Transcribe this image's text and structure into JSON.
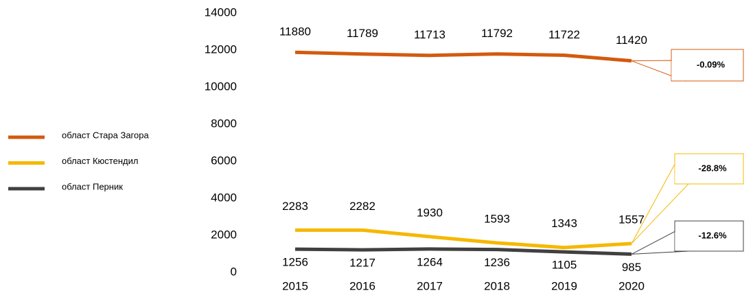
{
  "chart_data": {
    "type": "line",
    "categories": [
      "2015",
      "2016",
      "2017",
      "2018",
      "2019",
      "2020"
    ],
    "series": [
      {
        "name": "област Стара Загора",
        "color": "#d35a0f",
        "values": [
          11880,
          11789,
          11713,
          11792,
          11722,
          11420
        ]
      },
      {
        "name": "област Кюстендил",
        "color": "#f5b800",
        "values": [
          2283,
          2282,
          1930,
          1593,
          1343,
          1557
        ]
      },
      {
        "name": "област Перник",
        "color": "#404040",
        "values": [
          1256,
          1217,
          1264,
          1236,
          1105,
          985
        ]
      }
    ],
    "ylim": [
      0,
      14000
    ],
    "yticks": [
      0,
      2000,
      4000,
      6000,
      8000,
      10000,
      12000,
      14000
    ],
    "grid": false,
    "legend": "left",
    "annotations": [
      {
        "text": "-0.09%",
        "series": 0
      },
      {
        "text": "-28.8%",
        "series": 1
      },
      {
        "text": "-12.6%",
        "series": 2
      }
    ]
  }
}
